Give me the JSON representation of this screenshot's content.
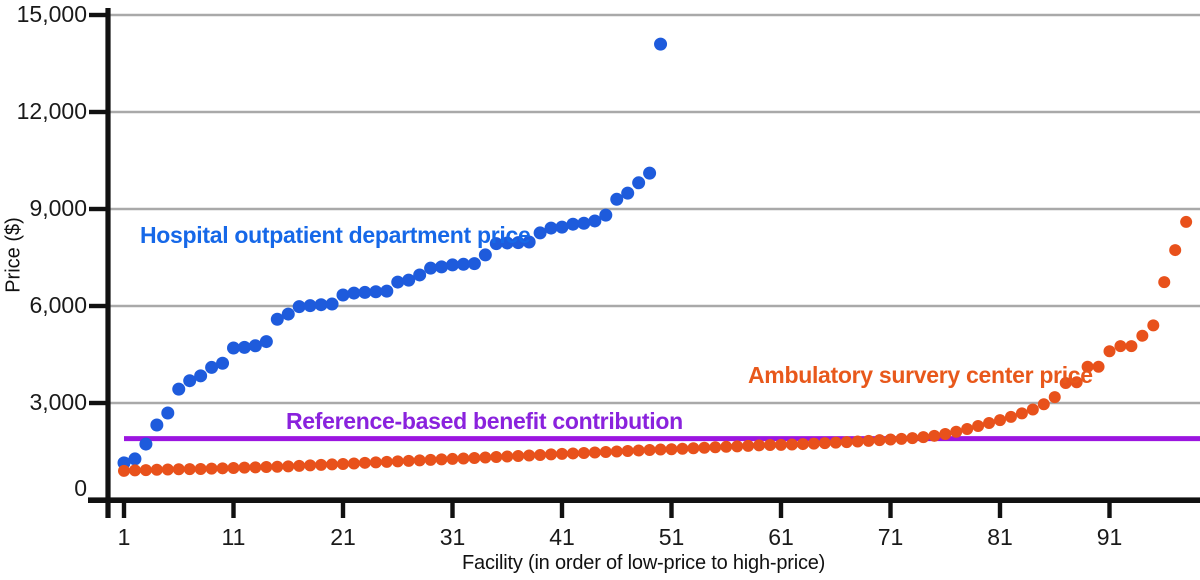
{
  "chart_data": {
    "type": "scatter",
    "title": "",
    "xlabel": "Facility (in order of low-price to high-price)",
    "ylabel": "Price ($)",
    "ylim": [
      0,
      15000
    ],
    "xlim": [
      0,
      99
    ],
    "grid": "horizontal-only",
    "legend_position": "inline-annotations",
    "ytick_values": [
      0,
      3000,
      6000,
      9000,
      12000,
      15000
    ],
    "ytick_labels": [
      "0",
      "3,000",
      "6,000",
      "9,000",
      "12,000",
      "15,000"
    ],
    "xtick_values": [
      1,
      11,
      21,
      31,
      41,
      51,
      61,
      71,
      81,
      91
    ],
    "xtick_labels": [
      "1",
      "11",
      "21",
      "31",
      "41",
      "51",
      "61",
      "71",
      "81",
      "91"
    ],
    "colors": {
      "axis": "#111111",
      "grid": "#a9a9a9",
      "tick_text": "#1a1a1a"
    },
    "series": [
      {
        "name": "Hospital outpatient department price",
        "color": "#1e5bdc",
        "label_color": "#1668e8",
        "x_start": 1,
        "values": [
          1150,
          1270,
          1730,
          2320,
          2690,
          3430,
          3690,
          3840,
          4100,
          4230,
          4700,
          4720,
          4770,
          4900,
          5590,
          5750,
          5980,
          6010,
          6040,
          6060,
          6340,
          6400,
          6420,
          6440,
          6460,
          6740,
          6800,
          6960,
          7170,
          7210,
          7270,
          7290,
          7310,
          7580,
          7930,
          7950,
          7960,
          7980,
          8260,
          8410,
          8440,
          8530,
          8560,
          8630,
          8810,
          9300,
          9490,
          9810,
          10110,
          14100
        ]
      },
      {
        "name": "Ambulatory survery center price",
        "color": "#e8511b",
        "label_color": "#e8581b",
        "x_start": 1,
        "values": [
          900,
          915,
          925,
          935,
          945,
          950,
          955,
          960,
          970,
          980,
          990,
          1000,
          1010,
          1020,
          1030,
          1040,
          1055,
          1070,
          1085,
          1100,
          1115,
          1130,
          1150,
          1165,
          1180,
          1195,
          1210,
          1225,
          1240,
          1255,
          1270,
          1285,
          1300,
          1315,
          1330,
          1345,
          1360,
          1375,
          1390,
          1410,
          1425,
          1440,
          1455,
          1470,
          1485,
          1500,
          1515,
          1530,
          1545,
          1560,
          1570,
          1585,
          1600,
          1615,
          1630,
          1645,
          1660,
          1675,
          1690,
          1700,
          1705,
          1715,
          1730,
          1745,
          1760,
          1775,
          1790,
          1810,
          1830,
          1850,
          1870,
          1890,
          1915,
          1945,
          1985,
          2040,
          2110,
          2195,
          2290,
          2380,
          2470,
          2570,
          2680,
          2800,
          2960,
          3180,
          3620,
          3640,
          4120,
          4120,
          4600,
          4760,
          4760,
          5080,
          5400,
          6740,
          7730,
          8600
        ]
      }
    ],
    "reference_line": {
      "label": "Reference-based benefit contribution",
      "value": 1900,
      "color": "#9b15e0",
      "label_color": "#8a22dd"
    }
  }
}
